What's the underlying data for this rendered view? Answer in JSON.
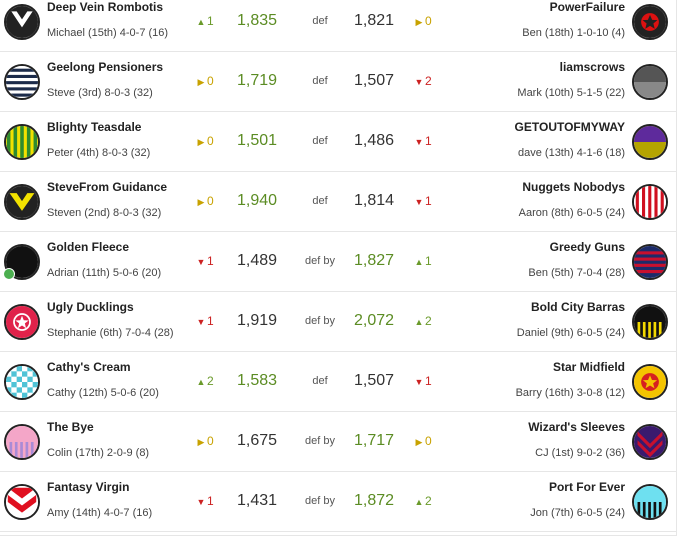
{
  "matchups": [
    {
      "left": {
        "team": "Deep Vein Rombotis",
        "coach": "Michael (15th) 4-0-7 (16)",
        "move": "1",
        "dir": "up",
        "score": "1,835",
        "guernsey": "vee-white-black"
      },
      "result": "def",
      "right": {
        "team": "PowerFailure",
        "coach": "Ben (18th) 1-0-10 (4)",
        "move": "0",
        "dir": "same",
        "score": "1,821",
        "guernsey": "star-black-red"
      }
    },
    {
      "left": {
        "team": "Geelong Pensioners",
        "coach": "Steve (3rd) 8-0-3 (32)",
        "move": "0",
        "dir": "same",
        "score": "1,719",
        "guernsey": "hoops-navy-white"
      },
      "result": "def",
      "right": {
        "team": "liamscrows",
        "coach": "Mark (10th) 5-1-5 (22)",
        "move": "2",
        "dir": "down",
        "score": "1,507",
        "guernsey": "half-grey"
      }
    },
    {
      "left": {
        "team": "Blighty Teasdale",
        "coach": "Peter (4th) 8-0-3 (32)",
        "move": "0",
        "dir": "same",
        "score": "1,501",
        "guernsey": "stripes-green-yellow"
      },
      "result": "def",
      "right": {
        "team": "GETOUTOFMYWAY",
        "coach": "dave (13th) 4-1-6 (18)",
        "move": "1",
        "dir": "down",
        "score": "1,486",
        "guernsey": "half-purple-olive"
      }
    },
    {
      "left": {
        "team": "SteveFrom Guidance",
        "coach": "Steven (2nd) 8-0-3 (32)",
        "move": "0",
        "dir": "same",
        "score": "1,940",
        "guernsey": "vee-yellow-black"
      },
      "result": "def",
      "right": {
        "team": "Nuggets Nobodys",
        "coach": "Aaron (8th) 6-0-5 (24)",
        "move": "1",
        "dir": "down",
        "score": "1,814",
        "guernsey": "stripes-red-white"
      }
    },
    {
      "left": {
        "team": "Golden Fleece",
        "coach": "Adrian (11th) 5-0-6 (20)",
        "move": "1",
        "dir": "down",
        "score": "1,489",
        "guernsey": "plain-black",
        "online": true
      },
      "result": "def by",
      "right": {
        "team": "Greedy Guns",
        "coach": "Ben (5th) 7-0-4 (28)",
        "move": "1",
        "dir": "up",
        "score": "1,827",
        "guernsey": "hoops-navy-red"
      }
    },
    {
      "left": {
        "team": "Ugly Ducklings",
        "coach": "Stephanie (6th) 7-0-4 (28)",
        "move": "1",
        "dir": "down",
        "score": "1,919",
        "guernsey": "star-red-white"
      },
      "result": "def by",
      "right": {
        "team": "Bold City Barras",
        "coach": "Daniel (9th) 6-0-5 (24)",
        "move": "2",
        "dir": "up",
        "score": "2,072",
        "guernsey": "half-black-yellowstripes"
      }
    },
    {
      "left": {
        "team": "Cathy's Cream",
        "coach": "Cathy (12th) 5-0-6 (20)",
        "move": "2",
        "dir": "up",
        "score": "1,583",
        "guernsey": "checks-teal-white"
      },
      "result": "def",
      "right": {
        "team": "Star Midfield",
        "coach": "Barry (16th) 3-0-8 (12)",
        "move": "1",
        "dir": "down",
        "score": "1,507",
        "guernsey": "star-yellow-red"
      }
    },
    {
      "left": {
        "team": "The Bye",
        "coach": "Colin (17th) 2-0-9 (8)",
        "move": "0",
        "dir": "same",
        "score": "1,675",
        "guernsey": "half-pink-stripes"
      },
      "result": "def by",
      "right": {
        "team": "Wizard's Sleeves",
        "coach": "CJ (1st) 9-0-2 (36)",
        "move": "0",
        "dir": "same",
        "score": "1,717",
        "guernsey": "chevrons-purple-red"
      }
    },
    {
      "left": {
        "team": "Fantasy Virgin",
        "coach": "Amy (14th) 4-0-7 (16)",
        "move": "1",
        "dir": "down",
        "score": "1,431",
        "guernsey": "vee-white-red"
      },
      "result": "def by",
      "right": {
        "team": "Port For Ever",
        "coach": "Jon (7th) 6-0-5 (24)",
        "move": "2",
        "dir": "up",
        "score": "1,872",
        "guernsey": "half-cyan-stripes"
      }
    }
  ],
  "arrow_glyphs": {
    "up": "▲",
    "down": "▼",
    "same": "▶"
  },
  "colors": {
    "win_score": "#5b8c23",
    "lose_score": "#333333",
    "up": "#6a9a2a",
    "down": "#cc2222",
    "same": "#c8a200",
    "online": "#4caf50"
  }
}
